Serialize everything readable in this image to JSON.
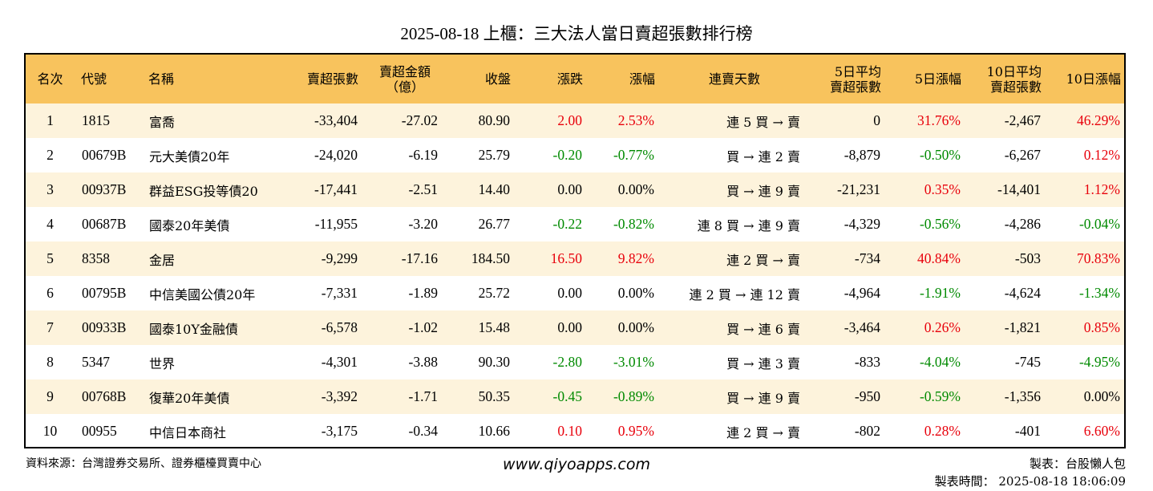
{
  "title": "2025-08-18 上櫃：三大法人當日賣超張數排行榜",
  "headers": [
    "名次",
    "代號",
    "名稱",
    "賣超張數",
    "賣超金額\n（億）",
    "收盤",
    "漲跌",
    "漲幅",
    "連賣天數",
    "5日平均\n賣超張數",
    "5日漲幅",
    "10日平均\n賣超張數",
    "10日漲幅"
  ],
  "rows": [
    [
      "1",
      "1815",
      "富喬",
      "-33,404",
      "-27.02",
      "80.90",
      "2.00",
      "2.53%",
      "連 5 買 → 賣",
      "0",
      "31.76%",
      "-2,467",
      "46.29%"
    ],
    [
      "2",
      "00679B",
      "元大美債20年",
      "-24,020",
      "-6.19",
      "25.79",
      "-0.20",
      "-0.77%",
      "買 → 連 2 賣",
      "-8,879",
      "-0.50%",
      "-6,267",
      "0.12%"
    ],
    [
      "3",
      "00937B",
      "群益ESG投等債20",
      "-17,441",
      "-2.51",
      "14.40",
      "0.00",
      "0.00%",
      "買 → 連 9 賣",
      "-21,231",
      "0.35%",
      "-14,401",
      "1.12%"
    ],
    [
      "4",
      "00687B",
      "國泰20年美債",
      "-11,955",
      "-3.20",
      "26.77",
      "-0.22",
      "-0.82%",
      "連 8 買 → 連 9 賣",
      "-4,329",
      "-0.56%",
      "-4,286",
      "-0.04%"
    ],
    [
      "5",
      "8358",
      "金居",
      "-9,299",
      "-17.16",
      "184.50",
      "16.50",
      "9.82%",
      "連 2 買 → 賣",
      "-734",
      "40.84%",
      "-503",
      "70.83%"
    ],
    [
      "6",
      "00795B",
      "中信美國公債20年",
      "-7,331",
      "-1.89",
      "25.72",
      "0.00",
      "0.00%",
      "連 2 買 → 連 12 賣",
      "-4,964",
      "-1.91%",
      "-4,624",
      "-1.34%"
    ],
    [
      "7",
      "00933B",
      "國泰10Y金融債",
      "-6,578",
      "-1.02",
      "15.48",
      "0.00",
      "0.00%",
      "買 → 連 6 賣",
      "-3,464",
      "0.26%",
      "-1,821",
      "0.85%"
    ],
    [
      "8",
      "5347",
      "世界",
      "-4,301",
      "-3.88",
      "90.30",
      "-2.80",
      "-3.01%",
      "買 → 連 3 賣",
      "-833",
      "-4.04%",
      "-745",
      "-4.95%"
    ],
    [
      "9",
      "00768B",
      "復華20年美債",
      "-3,392",
      "-1.71",
      "50.35",
      "-0.45",
      "-0.89%",
      "買 → 連 9 賣",
      "-950",
      "-0.59%",
      "-1,356",
      "0.00%"
    ],
    [
      "10",
      "00955",
      "中信日本商社",
      "-3,175",
      "-0.34",
      "10.66",
      "0.10",
      "0.95%",
      "連 2 買 → 賣",
      "-802",
      "0.28%",
      "-401",
      "6.60%"
    ]
  ],
  "footer": {
    "source": "資料來源：台灣證券交易所、證券櫃檯買賣中心",
    "website": "www.qiyoapps.com",
    "author": "製表：台股懶人包",
    "time": "製表時間： 2025-08-18 18:06:09"
  },
  "colors": {
    "header_bg": "#f8c35d",
    "row_alt_bg": "#fdf3dc",
    "up": "#e8000b",
    "down": "#008a00"
  }
}
